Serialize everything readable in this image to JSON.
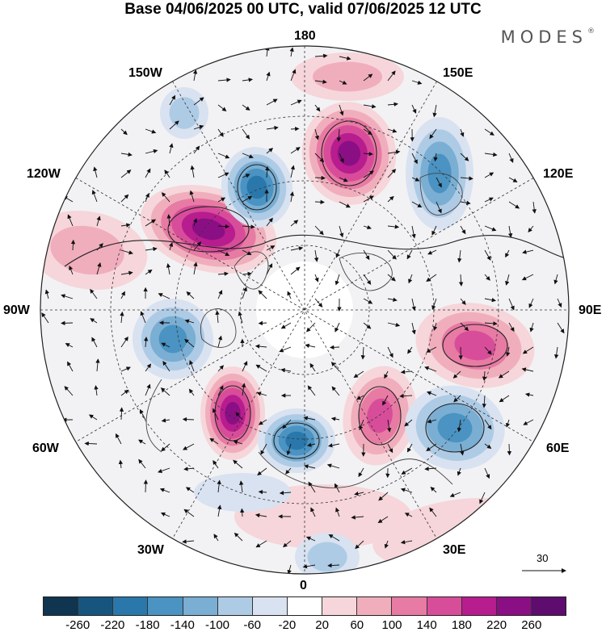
{
  "title": "Base 04/06/2025 00 UTC, valid 07/06/2025 12 UTC",
  "brand": "MODES",
  "brand_mark": "®",
  "longitude_labels": {
    "top": "180",
    "bottom": "0",
    "left": "90W",
    "right": "90E",
    "upper_left_1": "150W",
    "upper_left_2": "120W",
    "upper_right_1": "150E",
    "upper_right_2": "120E",
    "lower_left_1": "60W",
    "lower_left_2": "30W",
    "lower_right_1": "60E",
    "lower_right_2": "30E"
  },
  "reference_vector_label": "30",
  "colorbar": {
    "ticks": [
      "-260",
      "-220",
      "-180",
      "-140",
      "-100",
      "-60",
      "-20",
      "20",
      "60",
      "100",
      "140",
      "180",
      "220",
      "260"
    ],
    "colors": [
      "#0f3550",
      "#17557f",
      "#2a78ab",
      "#4a93c2",
      "#7aaed3",
      "#aecbe5",
      "#d9e2f0",
      "#ffffff",
      "#f6d6da",
      "#f0aebd",
      "#e77ba3",
      "#d84d9a",
      "#b71d8e",
      "#8b0f84",
      "#5e0d6e"
    ]
  }
}
